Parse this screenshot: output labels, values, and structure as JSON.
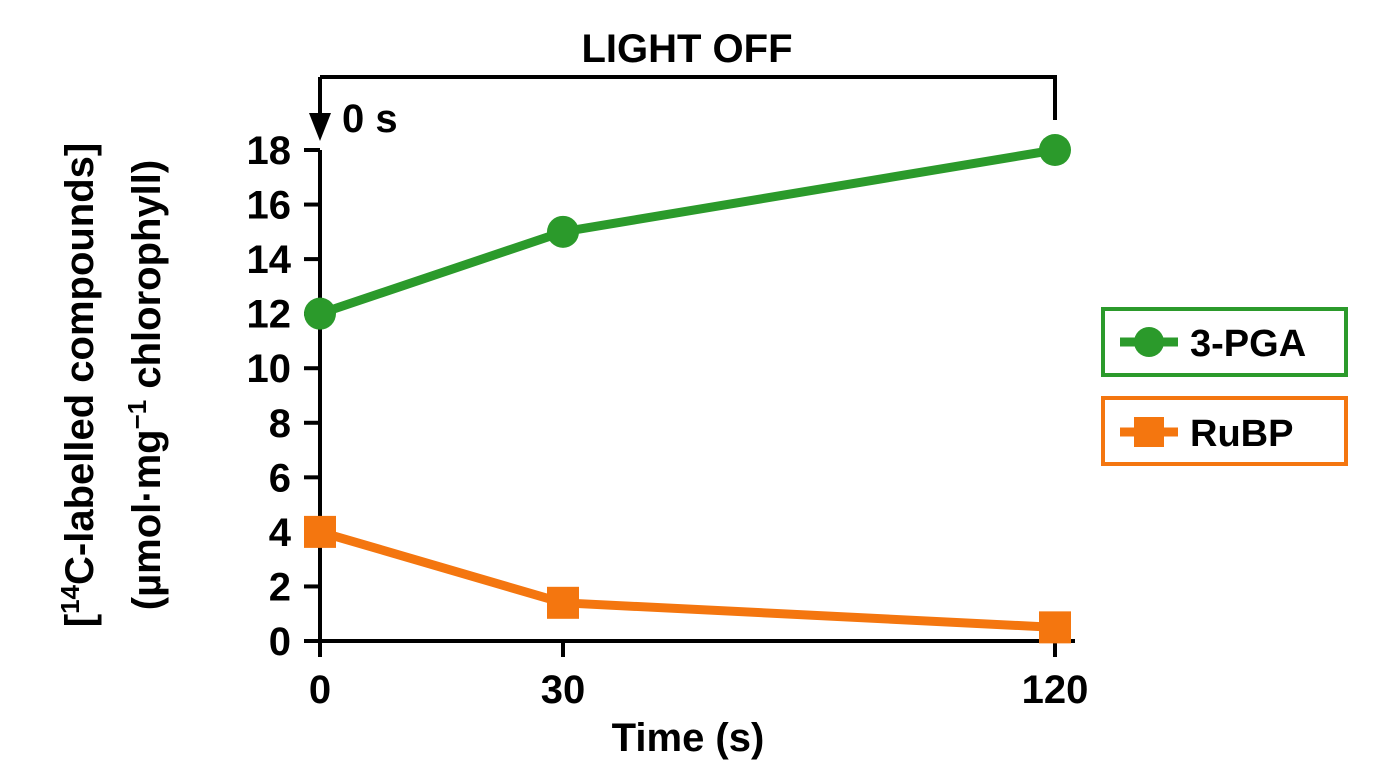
{
  "chart_data": {
    "type": "line",
    "title": "",
    "xlabel": "Time (s)",
    "ylabel_line1_prefix": "[",
    "ylabel_line1_sup": "14",
    "ylabel_line1_main": "C-labelled compounds]",
    "ylabel_line2_main": "(µmol·mg",
    "ylabel_line2_sup": "−1",
    "ylabel_line2_tail": " chlorophyll)",
    "x": [
      "0",
      "30",
      "120"
    ],
    "x_scale": "categorical",
    "ylim": [
      0,
      18
    ],
    "yticks": [
      0,
      2,
      4,
      6,
      8,
      10,
      12,
      14,
      16,
      18
    ],
    "series": [
      {
        "name": "3-PGA",
        "values": [
          12,
          15,
          18
        ],
        "color": "#2b9a2b",
        "marker": "circle"
      },
      {
        "name": "RuBP",
        "values": [
          4,
          1.4,
          0.5
        ],
        "color": "#f4760f",
        "marker": "square"
      }
    ],
    "annotations": {
      "bracket_label": "LIGHT OFF",
      "arrow_label": "0 s"
    },
    "legend_position": "right",
    "grid": false
  }
}
